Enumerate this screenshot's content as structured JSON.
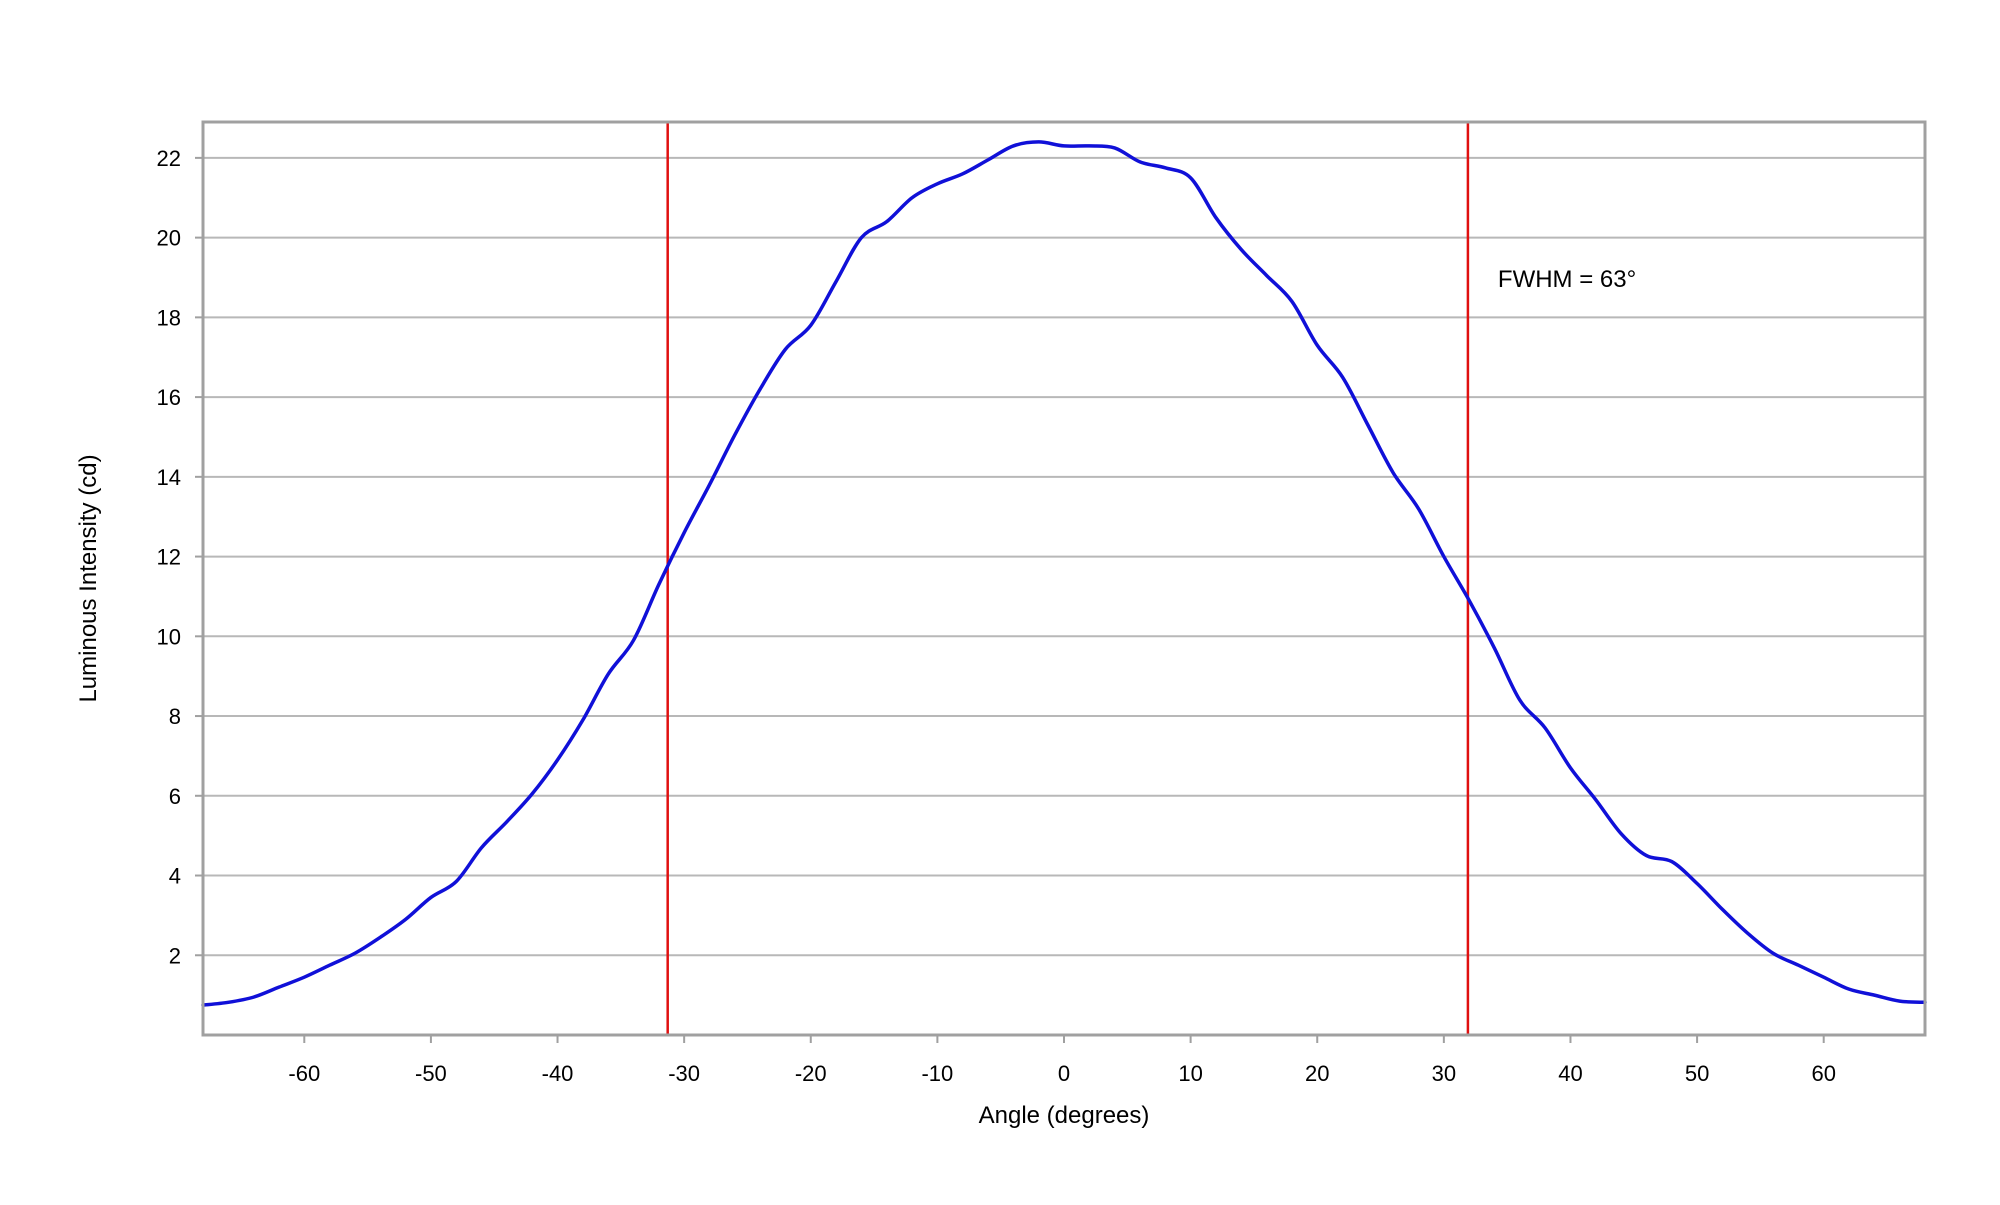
{
  "chart_data": {
    "type": "line",
    "title": "",
    "xlabel": "Angle (degrees)",
    "ylabel": "Luminous Intensity (cd)",
    "xlim": [
      -68,
      68
    ],
    "ylim": [
      0,
      22.9
    ],
    "xticks": [
      -60,
      -50,
      -40,
      -30,
      -20,
      -10,
      0,
      10,
      20,
      30,
      40,
      50,
      60
    ],
    "yticks": [
      2,
      4,
      6,
      8,
      10,
      12,
      14,
      16,
      18,
      20,
      22
    ],
    "grid": {
      "horizontal": true,
      "vertical": false
    },
    "colors": {
      "series": "#1010d8",
      "markers": "#e01010",
      "grid": "#b8b8b8",
      "frame": "#a0a0a0"
    },
    "series": [
      {
        "x": [
          -68,
          -66,
          -64,
          -62,
          -60,
          -58,
          -56,
          -54,
          -52,
          -50,
          -48,
          -46,
          -44,
          -42,
          -40,
          -38,
          -36,
          -34,
          -32,
          -30,
          -28,
          -26,
          -24,
          -22,
          -20,
          -18,
          -16,
          -14,
          -12,
          -10,
          -8,
          -6,
          -4,
          -2,
          0,
          2,
          4,
          6,
          8,
          10,
          12,
          14,
          16,
          18,
          20,
          22,
          24,
          26,
          28,
          30,
          32,
          34,
          36,
          38,
          40,
          42,
          44,
          46,
          48,
          50,
          52,
          54,
          56,
          58,
          60,
          62,
          64,
          66,
          68
        ],
        "y": [
          0.75,
          0.82,
          0.95,
          1.2,
          1.45,
          1.75,
          2.05,
          2.45,
          2.9,
          3.45,
          3.85,
          4.7,
          5.35,
          6.05,
          6.9,
          7.9,
          9.05,
          9.9,
          11.3,
          12.6,
          13.8,
          15.05,
          16.2,
          17.2,
          17.8,
          18.9,
          20.0,
          20.4,
          21.0,
          21.35,
          21.6,
          21.95,
          22.3,
          22.4,
          22.3,
          22.3,
          22.25,
          21.9,
          21.75,
          21.5,
          20.5,
          19.7,
          19.05,
          18.4,
          17.3,
          16.5,
          15.3,
          14.1,
          13.2,
          12.0,
          10.9,
          9.7,
          8.4,
          7.7,
          6.7,
          5.9,
          5.05,
          4.5,
          4.35,
          3.8,
          3.15,
          2.55,
          2.05,
          1.75,
          1.45,
          1.15,
          1.0,
          0.85,
          0.82
        ]
      }
    ],
    "markers": [
      {
        "x": -31.3
      },
      {
        "x": 31.9
      }
    ],
    "annotation": "FWHM = 63°"
  }
}
